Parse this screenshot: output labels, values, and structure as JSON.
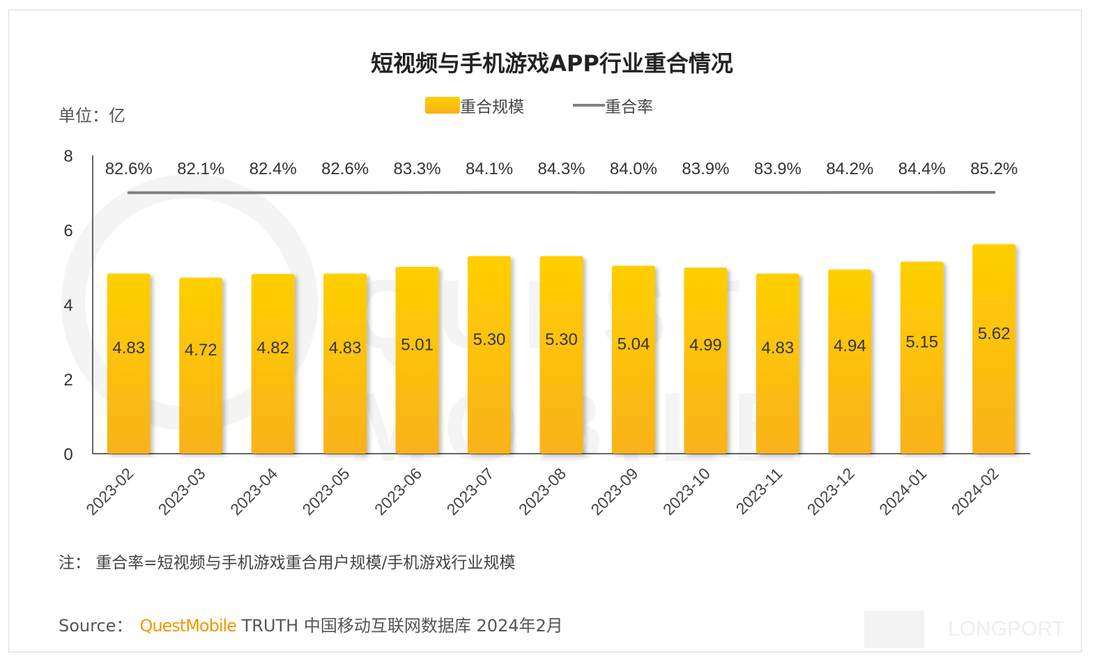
{
  "title": "短视频与手机游戏APP行业重合情况",
  "unit_label": "单位：亿",
  "legend": {
    "bar_label": "重合规模",
    "line_label": "重合率"
  },
  "note": "注：  重合率=短视频与手机游戏重合用户规模/手机游戏行业规模",
  "source": {
    "prefix": "Source：",
    "brand": "QuestMobile",
    "rest": "TRUTH 中国移动互联网数据库 2024年2月"
  },
  "watermark": "LONGPORT",
  "colors": {
    "bar_top": "#ffcf00",
    "bar_bottom": "#f9b21b",
    "line": "#808080",
    "brand": "#f39800"
  },
  "chart_data": {
    "type": "bar",
    "categories": [
      "2023-02",
      "2023-03",
      "2023-04",
      "2023-05",
      "2023-06",
      "2023-07",
      "2023-08",
      "2023-09",
      "2023-10",
      "2023-11",
      "2023-12",
      "2024-01",
      "2024-02"
    ],
    "series": [
      {
        "name": "重合规模",
        "type": "bar",
        "values": [
          4.83,
          4.72,
          4.82,
          4.83,
          5.01,
          5.3,
          5.3,
          5.04,
          4.99,
          4.83,
          4.94,
          5.15,
          5.62
        ],
        "labels": [
          "4.83",
          "4.72",
          "4.82",
          "4.83",
          "5.01",
          "5.30",
          "5.30",
          "5.04",
          "4.99",
          "4.83",
          "4.94",
          "5.15",
          "5.62"
        ]
      },
      {
        "name": "重合率",
        "type": "line",
        "values": [
          82.6,
          82.1,
          82.4,
          82.6,
          83.3,
          84.1,
          84.3,
          84.0,
          83.9,
          83.9,
          84.2,
          84.4,
          85.2
        ],
        "labels": [
          "82.6%",
          "82.1%",
          "82.4%",
          "82.6%",
          "83.3%",
          "84.1%",
          "84.3%",
          "84.0%",
          "83.9%",
          "83.9%",
          "84.2%",
          "84.4%",
          "85.2%"
        ]
      }
    ],
    "ylim": [
      0,
      8
    ],
    "yticks": [
      "0",
      "2",
      "4",
      "6",
      "8"
    ],
    "grid": false,
    "legend_position": "top-center"
  }
}
